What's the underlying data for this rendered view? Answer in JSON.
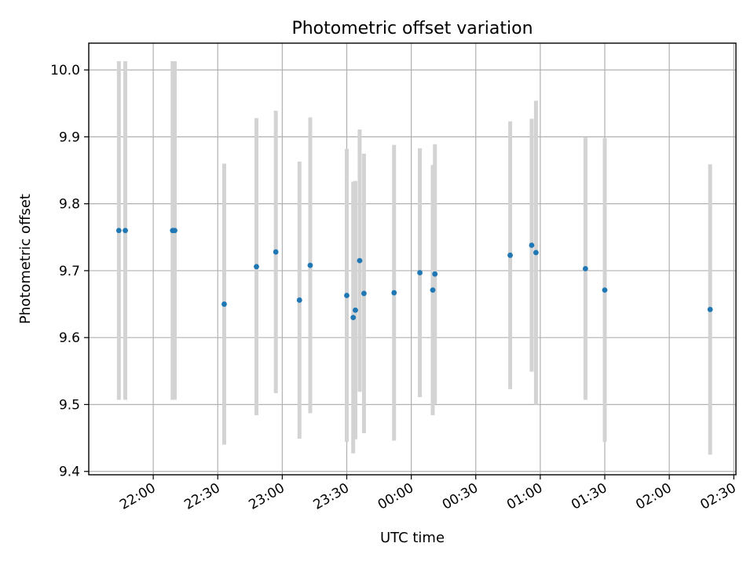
{
  "chart_data": {
    "type": "scatter",
    "title": "Photometric offset variation",
    "xlabel": "UTC time",
    "ylabel": "Photometric offset",
    "grid": true,
    "legend": "none",
    "x_axis": "time (HH:MM, minutes after 21:30 in internal mapping)",
    "xlim": [
      "21:30",
      "02:31"
    ],
    "ylim": [
      9.395,
      10.04
    ],
    "x_ticks": [
      "22:00",
      "22:30",
      "23:00",
      "23:30",
      "00:00",
      "00:30",
      "01:00",
      "01:30",
      "02:00",
      "02:30"
    ],
    "y_ticks": [
      "9.4",
      "9.5",
      "9.6",
      "9.7",
      "9.8",
      "9.9",
      "10.0"
    ],
    "colors": {
      "point": "#1f77b4",
      "errorbar": "#d3d3d3",
      "grid": "#b0b0b0"
    },
    "points": [
      {
        "x": "21:44",
        "y": 9.76,
        "yerr": 0.253
      },
      {
        "x": "21:47",
        "y": 9.76,
        "yerr": 0.253
      },
      {
        "x": "22:09",
        "y": 9.76,
        "yerr": 0.253
      },
      {
        "x": "22:10",
        "y": 9.76,
        "yerr": 0.253
      },
      {
        "x": "22:33",
        "y": 9.65,
        "yerr": 0.21
      },
      {
        "x": "22:48",
        "y": 9.706,
        "yerr": 0.222
      },
      {
        "x": "22:57",
        "y": 9.728,
        "yerr": 0.211
      },
      {
        "x": "23:08",
        "y": 9.656,
        "yerr": 0.207
      },
      {
        "x": "23:13",
        "y": 9.708,
        "yerr": 0.221
      },
      {
        "x": "23:30",
        "y": 9.663,
        "yerr": 0.219
      },
      {
        "x": "23:33",
        "y": 9.63,
        "yerr": 0.203
      },
      {
        "x": "23:34",
        "y": 9.641,
        "yerr": 0.193
      },
      {
        "x": "23:36",
        "y": 9.715,
        "yerr": 0.196
      },
      {
        "x": "23:38",
        "y": 9.666,
        "yerr": 0.209
      },
      {
        "x": "23:52",
        "y": 9.667,
        "yerr": 0.221
      },
      {
        "x": "00:04",
        "y": 9.697,
        "yerr": 0.186
      },
      {
        "x": "00:10",
        "y": 9.671,
        "yerr": 0.187
      },
      {
        "x": "00:11",
        "y": 9.695,
        "yerr": 0.194
      },
      {
        "x": "00:46",
        "y": 9.723,
        "yerr": 0.2
      },
      {
        "x": "00:56",
        "y": 9.738,
        "yerr": 0.189
      },
      {
        "x": "00:58",
        "y": 9.727,
        "yerr": 0.227
      },
      {
        "x": "01:21",
        "y": 9.703,
        "yerr": 0.196
      },
      {
        "x": "01:30",
        "y": 9.671,
        "yerr": 0.227
      },
      {
        "x": "02:19",
        "y": 9.642,
        "yerr": 0.217
      }
    ]
  }
}
